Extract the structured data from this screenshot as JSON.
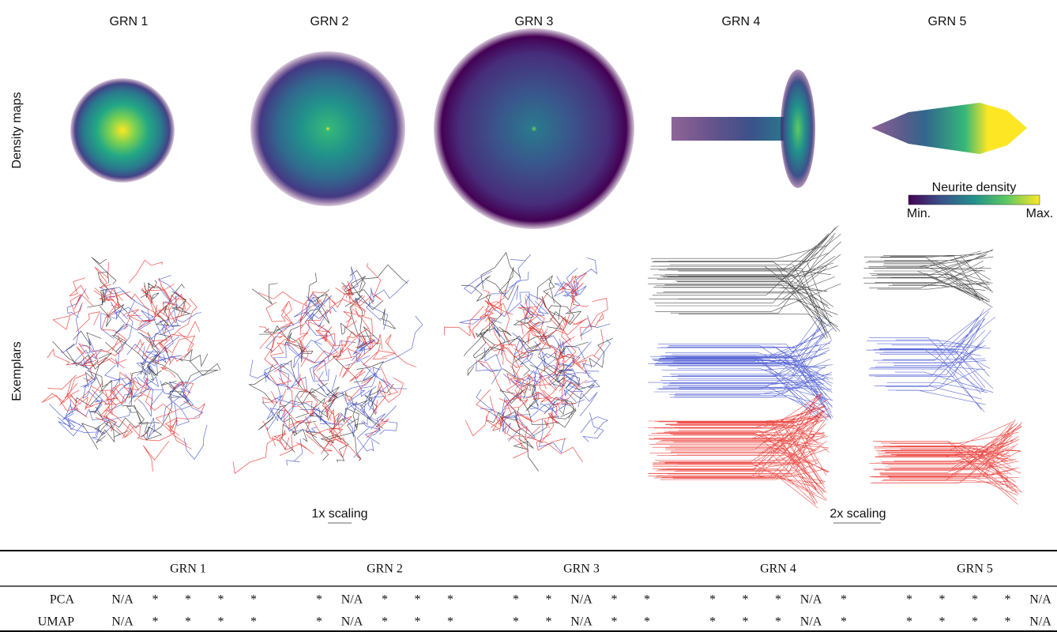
{
  "figure": {
    "columns": [
      "GRN 1",
      "GRN 2",
      "GRN 3",
      "GRN 4",
      "GRN 5"
    ],
    "row_labels": [
      "Density maps",
      "Exemplars"
    ],
    "colorbar": {
      "label": "Neurite density",
      "min": "Min.",
      "max": "Max."
    },
    "scales": [
      "1x scaling",
      "2x scaling"
    ]
  },
  "table": {
    "columns": [
      "GRN 1",
      "GRN 2",
      "GRN 3",
      "GRN 4",
      "GRN 5"
    ],
    "rows": [
      {
        "label": "PCA",
        "cells": [
          "N/A",
          "*",
          "*",
          "*",
          "*",
          "*",
          "N/A",
          "*",
          "*",
          "*",
          "*",
          "*",
          "N/A",
          "*",
          "*",
          "*",
          "*",
          "*",
          "N/A",
          "*",
          "*",
          "*",
          "*",
          "*",
          "N/A"
        ]
      },
      {
        "label": "UMAP",
        "cells": [
          "N/A",
          "*",
          "*",
          "*",
          "*",
          "*",
          "N/A",
          "*",
          "*",
          "*",
          "*",
          "*",
          "N/A",
          "*",
          "*",
          "*",
          "*",
          "*",
          "N/A",
          "*",
          "*",
          "*",
          "*",
          "*",
          "N/A"
        ]
      }
    ]
  }
}
